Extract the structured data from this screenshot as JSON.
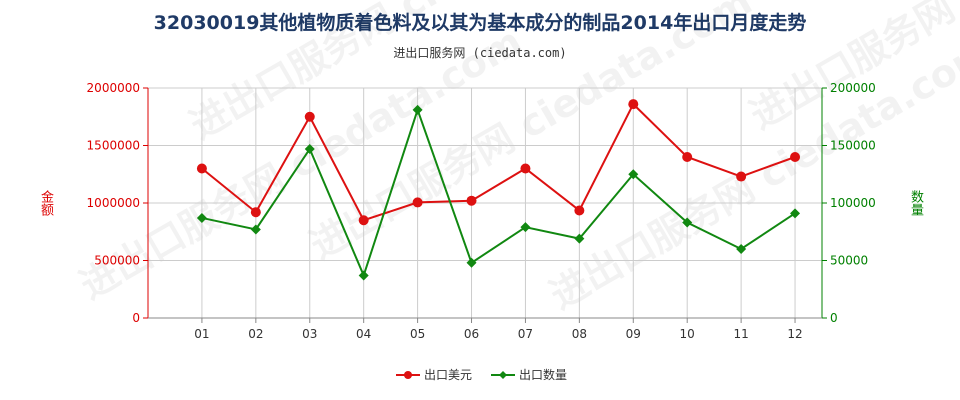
{
  "title": "32030019其他植物质着色料及以其为基本成分的制品2014年出口月度走势",
  "subtitle": "进出口服务网 (ciedata.com)",
  "watermark": "进出口服务网 ciedata.com",
  "colors": {
    "amount": "#dd1111",
    "quantity": "#118811",
    "grid": "#cccccc",
    "title": "#1f3a66"
  },
  "chart_data": {
    "type": "line",
    "categories": [
      "01",
      "02",
      "03",
      "04",
      "05",
      "06",
      "07",
      "08",
      "09",
      "10",
      "11",
      "12"
    ],
    "y_left": {
      "label": "金额",
      "ylim": [
        0,
        2000000
      ],
      "ticks": [
        "0",
        "500000",
        "1000000",
        "1500000",
        "2000000"
      ],
      "color": "#dd0000"
    },
    "y_right": {
      "label": "数量",
      "ylim": [
        0,
        200000
      ],
      "ticks": [
        "0",
        "50000",
        "100000",
        "150000",
        "200000"
      ],
      "color": "#008000"
    },
    "grid": true,
    "legend_position": "bottom",
    "series": [
      {
        "name": "出口美元",
        "axis": "left",
        "marker": "circle",
        "color": "#dd1111",
        "values": [
          1300000,
          920000,
          1750000,
          850000,
          1005000,
          1020000,
          1300000,
          935000,
          1860000,
          1400000,
          1230000,
          1400000
        ]
      },
      {
        "name": "出口数量",
        "axis": "right",
        "marker": "diamond",
        "color": "#118811",
        "values": [
          87000,
          77000,
          147000,
          37000,
          181000,
          48000,
          79000,
          69000,
          125000,
          83000,
          60000,
          91000
        ]
      }
    ]
  }
}
